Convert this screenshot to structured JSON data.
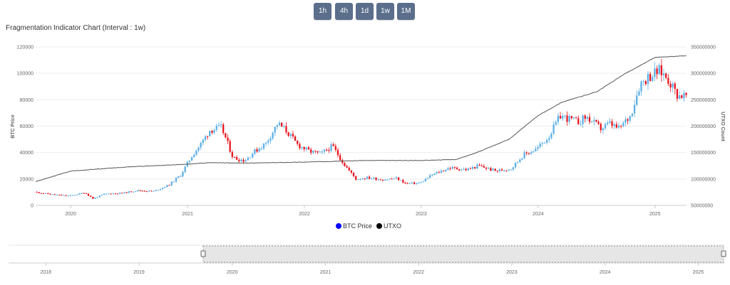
{
  "toolbar": {
    "buttons": [
      "1h",
      "4h",
      "1d",
      "1w",
      "1M"
    ]
  },
  "chart_data": {
    "type": "candlestick+line",
    "title": "Fragmentation Indicator Chart (Interval : 1w)",
    "y_left_label": "BTC Price",
    "y_right_label": "UTXO Count",
    "y_left_ticks": [
      "0",
      "20000",
      "40000",
      "60000",
      "80000",
      "100000",
      "120000"
    ],
    "y_right_ticks": [
      "50000000",
      "100000000",
      "150000000",
      "200000000",
      "250000000",
      "300000000",
      "350000000"
    ],
    "y_left_range": [
      0,
      120000
    ],
    "y_right_range": [
      50000000,
      350000000
    ],
    "x_ticks": [
      "2020",
      "2021",
      "2022",
      "2023",
      "2024",
      "2025"
    ],
    "legend": [
      {
        "name": "BTC Price",
        "color": "#0000ff"
      },
      {
        "name": "UTXO",
        "color": "#000000"
      }
    ],
    "up_color": "#5aaee6",
    "down_color": "#e8131d",
    "utxo_color": "#555555",
    "price_anchors": [
      [
        2019.7,
        10200
      ],
      [
        2019.85,
        8300
      ],
      [
        2020.0,
        7200
      ],
      [
        2020.13,
        9700
      ],
      [
        2020.2,
        5100
      ],
      [
        2020.3,
        8700
      ],
      [
        2020.45,
        9300
      ],
      [
        2020.58,
        11300
      ],
      [
        2020.72,
        10700
      ],
      [
        2020.85,
        15500
      ],
      [
        2020.95,
        23000
      ],
      [
        2021.05,
        38000
      ],
      [
        2021.12,
        46000
      ],
      [
        2021.2,
        57000
      ],
      [
        2021.3,
        59000
      ],
      [
        2021.4,
        36000
      ],
      [
        2021.5,
        34000
      ],
      [
        2021.57,
        40000
      ],
      [
        2021.68,
        47000
      ],
      [
        2021.78,
        62000
      ],
      [
        2021.85,
        57000
      ],
      [
        2021.95,
        46000
      ],
      [
        2022.05,
        41000
      ],
      [
        2022.15,
        39000
      ],
      [
        2022.25,
        45000
      ],
      [
        2022.35,
        31000
      ],
      [
        2022.45,
        20000
      ],
      [
        2022.55,
        21000
      ],
      [
        2022.68,
        19500
      ],
      [
        2022.8,
        20500
      ],
      [
        2022.88,
        16500
      ],
      [
        2023.0,
        17000
      ],
      [
        2023.1,
        23000
      ],
      [
        2023.25,
        28500
      ],
      [
        2023.4,
        27000
      ],
      [
        2023.5,
        30000
      ],
      [
        2023.65,
        26000
      ],
      [
        2023.78,
        28000
      ],
      [
        2023.88,
        38000
      ],
      [
        2024.0,
        43000
      ],
      [
        2024.1,
        52000
      ],
      [
        2024.2,
        68000
      ],
      [
        2024.35,
        63000
      ],
      [
        2024.42,
        67000
      ],
      [
        2024.55,
        58000
      ],
      [
        2024.62,
        62000
      ],
      [
        2024.7,
        58000
      ],
      [
        2024.8,
        68000
      ],
      [
        2024.88,
        92000
      ],
      [
        2024.96,
        98000
      ],
      [
        2025.05,
        102000
      ],
      [
        2025.12,
        96000
      ],
      [
        2025.2,
        84000
      ],
      [
        2025.25,
        83000
      ]
    ],
    "utxo_anchors": [
      [
        2019.7,
        95000000
      ],
      [
        2020.0,
        115000000
      ],
      [
        2020.5,
        123000000
      ],
      [
        2021.0,
        128000000
      ],
      [
        2021.2,
        131000000
      ],
      [
        2021.5,
        130000000
      ],
      [
        2022.0,
        132000000
      ],
      [
        2022.5,
        135000000
      ],
      [
        2023.0,
        135000000
      ],
      [
        2023.3,
        137000000
      ],
      [
        2023.45,
        148000000
      ],
      [
        2023.75,
        175000000
      ],
      [
        2024.0,
        220000000
      ],
      [
        2024.2,
        245000000
      ],
      [
        2024.5,
        265000000
      ],
      [
        2024.75,
        300000000
      ],
      [
        2025.0,
        330000000
      ],
      [
        2025.25,
        333000000
      ]
    ]
  },
  "navigator": {
    "x_ticks": [
      "2018",
      "2019",
      "2020",
      "2021",
      "2022",
      "2023",
      "2024",
      "2025"
    ]
  }
}
